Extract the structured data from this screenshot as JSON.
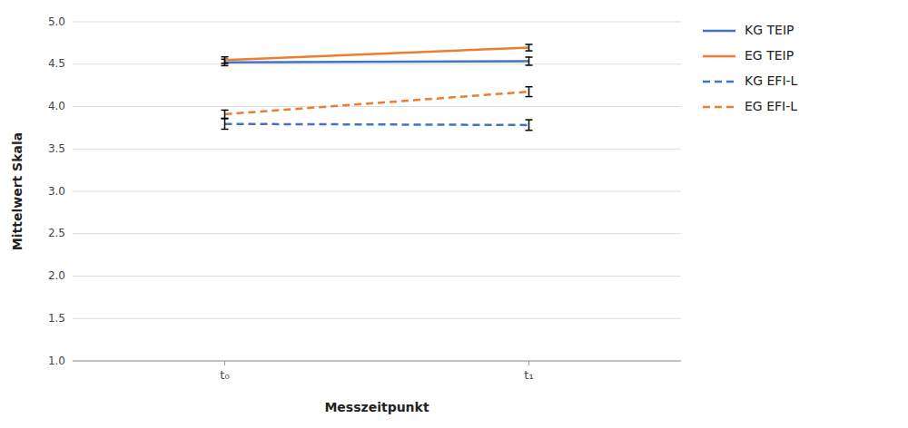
{
  "chart_data": {
    "type": "line",
    "x_label": "Messzeitpunkt",
    "y_label": "Mittelwert Skala",
    "categories": [
      "t₀",
      "t₁"
    ],
    "ylim": [
      1.0,
      5.0
    ],
    "yticks": [
      {
        "value": 1.0,
        "label": "1.0"
      },
      1.5,
      {
        "value": 2.0,
        "label": "2.0"
      },
      2.5,
      {
        "value": 3.0,
        "label": "3.0"
      },
      3.5,
      {
        "value": 4.0,
        "label": "4.0"
      },
      4.5,
      {
        "value": 5.0,
        "label": "5.0"
      }
    ],
    "grid": true,
    "legend": "right",
    "series": [
      {
        "name": "KG TEIP",
        "color": "#4472C4",
        "line_style": "solid",
        "values": [
          4.52,
          4.535
        ],
        "errors": [
          0.038,
          0.048
        ]
      },
      {
        "name": "EG TEIP",
        "color": "#ED7D31",
        "line_style": "solid",
        "values": [
          4.548,
          4.695
        ],
        "errors": [
          0.038,
          0.038
        ]
      },
      {
        "name": "KG EFI-L",
        "color": "#4472C4",
        "line_style": "dashed",
        "values": [
          3.795,
          3.782
        ],
        "errors": [
          0.062,
          0.062
        ]
      },
      {
        "name": "EG EFI-L",
        "color": "#ED7D31",
        "line_style": "dashed",
        "values": [
          3.91,
          4.175
        ],
        "errors": [
          0.048,
          0.058
        ]
      }
    ]
  }
}
